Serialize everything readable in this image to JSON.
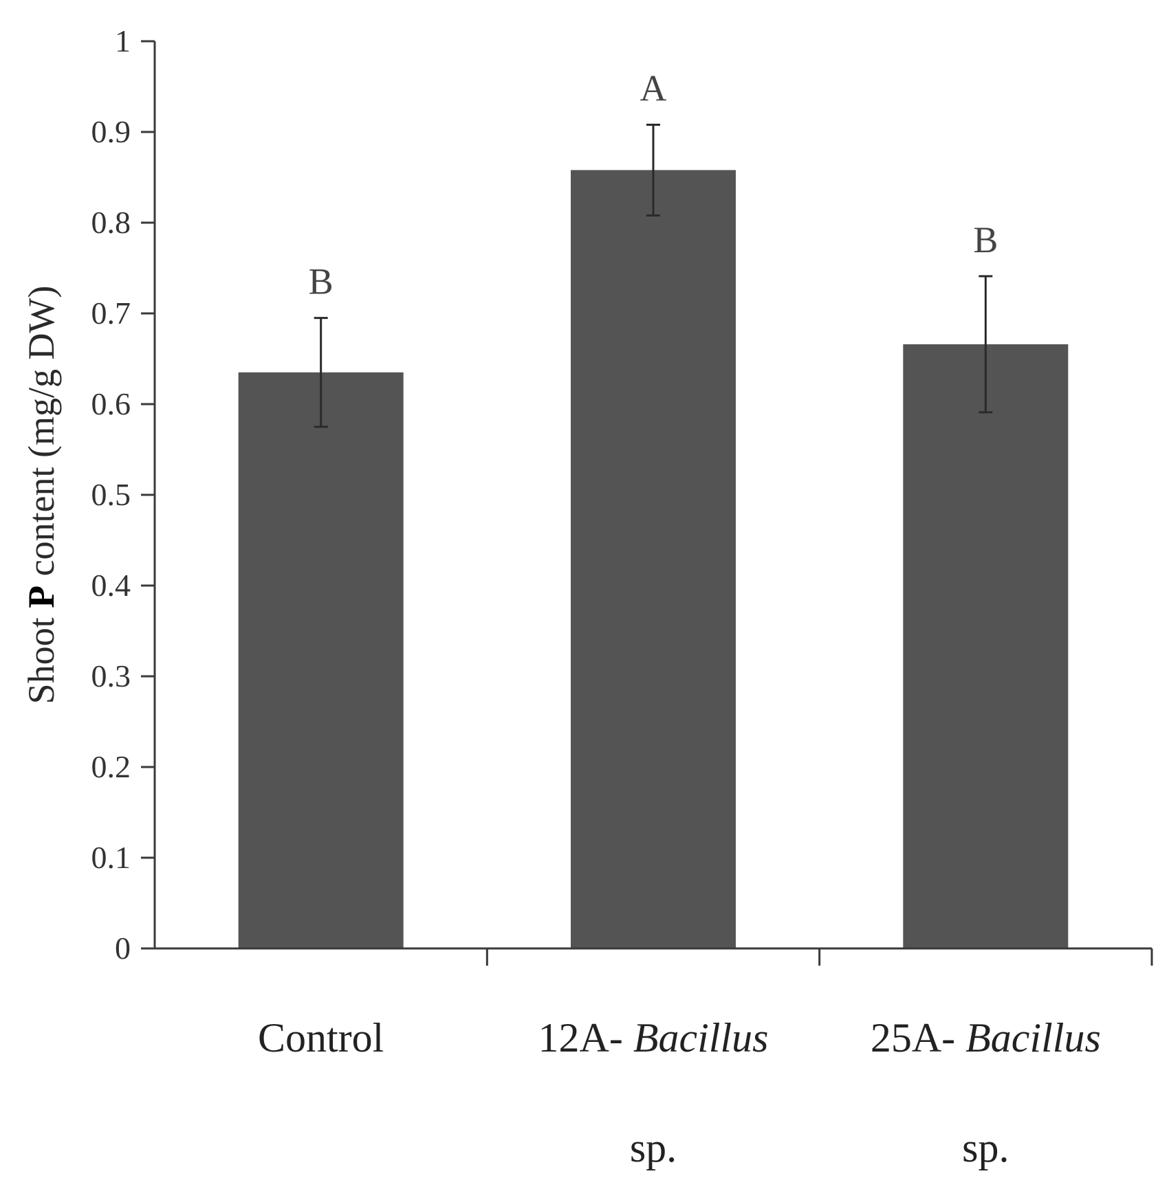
{
  "chart_data": {
    "type": "bar",
    "ylabel": "Shoot P content (mg/g DW)",
    "ylabel_parts": [
      "Shoot ",
      "P",
      " content (mg/g DW)"
    ],
    "ylim": [
      0,
      1
    ],
    "yticks": [
      "0",
      "0.1",
      "0.2",
      "0.3",
      "0.4",
      "0.5",
      "0.6",
      "0.7",
      "0.8",
      "0.9",
      "1"
    ],
    "categories": [
      {
        "label": "Control",
        "label_lines": [
          [
            "Control"
          ]
        ]
      },
      {
        "label": "12A- Bacillus sp.",
        "label_lines": [
          [
            "12A- ",
            "Bacillus"
          ],
          [
            "sp."
          ]
        ]
      },
      {
        "label": "25A- Bacillus sp.",
        "label_lines": [
          [
            "25A- ",
            "Bacillus"
          ],
          [
            "sp."
          ]
        ]
      }
    ],
    "values": [
      0.635,
      0.858,
      0.666
    ],
    "errors": [
      0.06,
      0.05,
      0.075
    ],
    "significance": [
      "B",
      "A",
      "B"
    ],
    "grid": false,
    "bar_color": "#545454",
    "axis_color": "#3a3a3a"
  }
}
